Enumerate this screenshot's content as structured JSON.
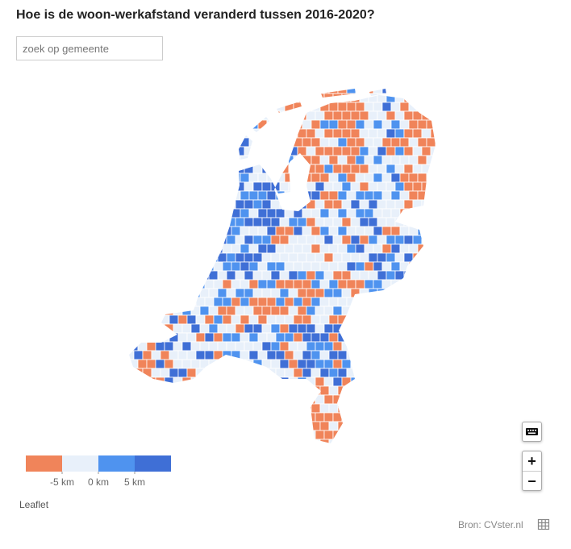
{
  "header": {
    "title": "Hoe is de woon-werkafstand veranderd tussen 2016-2020?",
    "search_placeholder": "zoek op gemeente"
  },
  "legend": {
    "colors": [
      "#f0845a",
      "#e8f0fa",
      "#4f93ef",
      "#3f6fd6"
    ],
    "ticks": [
      {
        "value": -5,
        "label": "-5 km"
      },
      {
        "value": 0,
        "label": "0 km"
      },
      {
        "value": 5,
        "label": "5 km"
      }
    ]
  },
  "controls": {
    "zoom_in": "+",
    "zoom_out": "−"
  },
  "attribution": "Leaflet",
  "source": "Bron: CVster.nl"
}
